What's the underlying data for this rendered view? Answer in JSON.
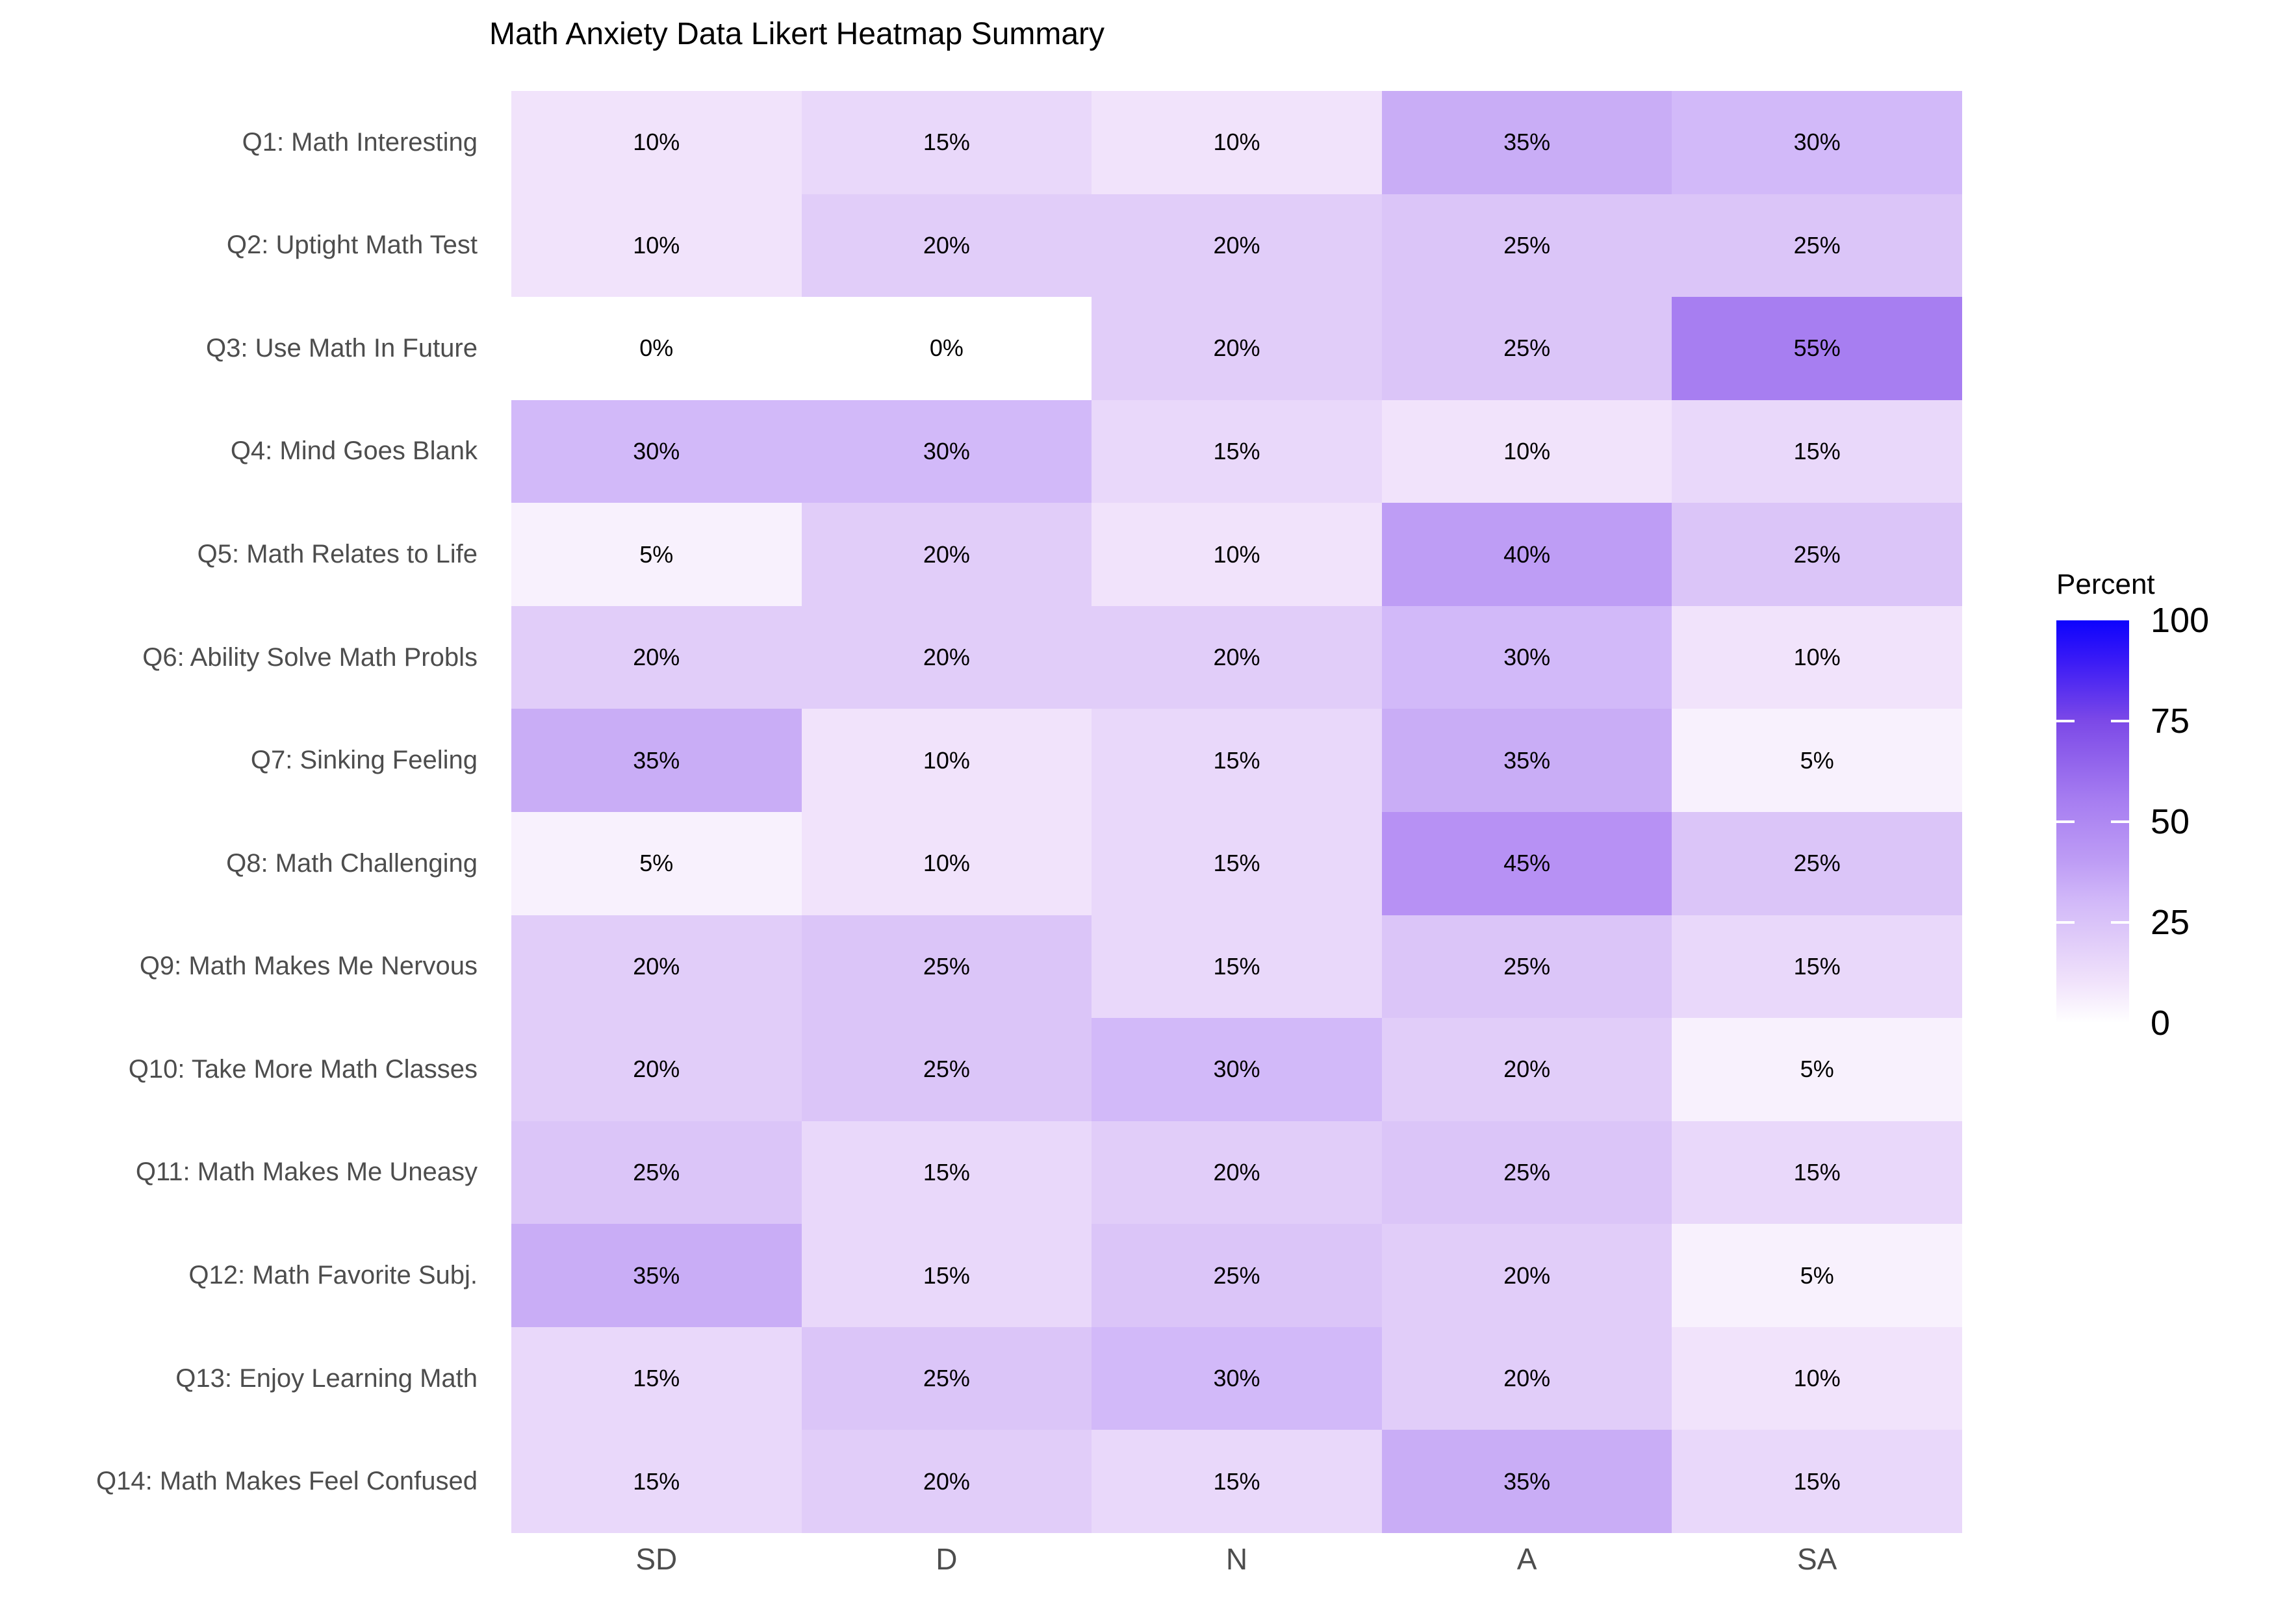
{
  "title": "Math Anxiety Data Likert Heatmap Summary",
  "chart_data": {
    "type": "heatmap",
    "title": "Math Anxiety Data Likert Heatmap Summary",
    "x_categories": [
      "SD",
      "D",
      "N",
      "A",
      "SA"
    ],
    "y_categories": [
      "Q1: Math Interesting",
      "Q2: Uptight Math Test",
      "Q3: Use Math In Future",
      "Q4: Mind Goes Blank",
      "Q5: Math Relates to Life",
      "Q6: Ability Solve Math Probls",
      "Q7: Sinking Feeling",
      "Q8: Math Challenging",
      "Q9: Math Makes Me Nervous",
      "Q10: Take More Math Classes",
      "Q11: Math Makes Me Uneasy",
      "Q12: Math Favorite Subj.",
      "Q13: Enjoy Learning Math",
      "Q14: Math Makes Feel Confused"
    ],
    "values": [
      [
        10,
        15,
        10,
        35,
        30
      ],
      [
        10,
        20,
        20,
        25,
        25
      ],
      [
        0,
        0,
        20,
        25,
        55
      ],
      [
        30,
        30,
        15,
        10,
        15
      ],
      [
        5,
        20,
        10,
        40,
        25
      ],
      [
        20,
        20,
        20,
        30,
        10
      ],
      [
        35,
        10,
        15,
        35,
        5
      ],
      [
        5,
        10,
        15,
        45,
        25
      ],
      [
        20,
        25,
        15,
        25,
        15
      ],
      [
        20,
        25,
        30,
        20,
        5
      ],
      [
        25,
        15,
        20,
        25,
        15
      ],
      [
        35,
        15,
        25,
        20,
        5
      ],
      [
        15,
        25,
        30,
        20,
        10
      ],
      [
        15,
        20,
        15,
        35,
        15
      ]
    ],
    "value_suffix": "%",
    "legend": {
      "title": "Percent",
      "ticks": [
        100,
        75,
        50,
        25,
        0
      ],
      "bar_ticks": [
        25,
        50,
        75
      ],
      "range": [
        0,
        100
      ],
      "position": "right"
    },
    "color_scale": {
      "low": "#FFFFFF",
      "high": "#0000FF",
      "space": "Lab",
      "value_colors": {
        "0": "#FFFFFF",
        "5": "#F8F1FD",
        "10": "#F1E3FB",
        "15": "#E9D8FA",
        "20": "#E1CDF9",
        "25": "#DBC5F8",
        "30": "#D2B9F9",
        "35": "#C9ADF6",
        "40": "#BE9DF5",
        "45": "#B791F4",
        "55": "#A77EF1"
      },
      "legend_gradient_stops": [
        {
          "pct": 0,
          "color": "#FFFFFF"
        },
        {
          "pct": 10,
          "color": "#F1E3FB"
        },
        {
          "pct": 20,
          "color": "#E1CDF9"
        },
        {
          "pct": 30,
          "color": "#D2B9F9"
        },
        {
          "pct": 40,
          "color": "#BE9DF5"
        },
        {
          "pct": 55,
          "color": "#A77EF1"
        },
        {
          "pct": 75,
          "color": "#7C49E7"
        },
        {
          "pct": 90,
          "color": "#3A1AF6"
        },
        {
          "pct": 100,
          "color": "#0D03FD"
        }
      ]
    },
    "axis_text_color": "#4D4D4D",
    "cell_text_color": "#000000",
    "grid": "off"
  }
}
